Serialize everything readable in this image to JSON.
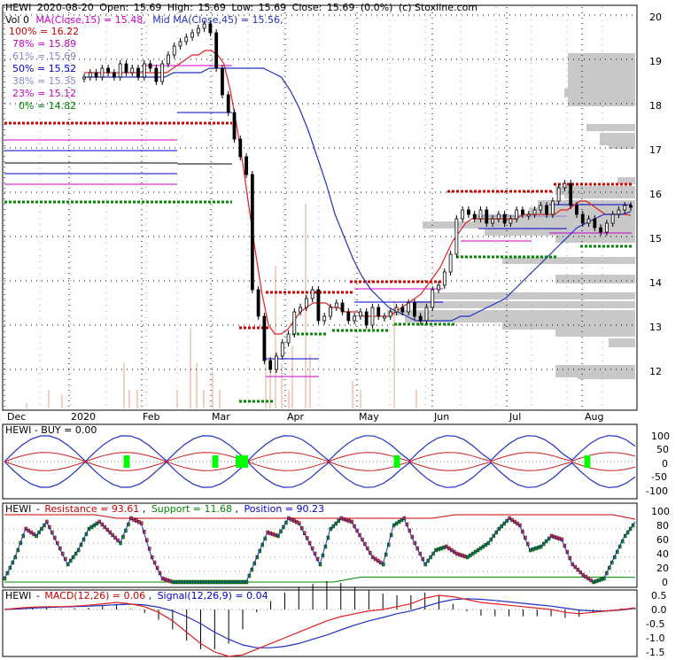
{
  "header": {
    "ticker": "HEWI",
    "date": "2020-08-20",
    "open_label": "Open:",
    "open": "15.69",
    "high_label": "High:",
    "high": "15.69",
    "low_label": "Low:",
    "low": "15.69",
    "close_label": "Close:",
    "close": "15.69",
    "change": "(0.0%)",
    "credit": "(c) Stoxline.com",
    "vol_label": "Vol 0",
    "ma15_label": "MA(Close,15) = 15.48,",
    "ma45_label": "Mid MA(Close,45) = 15.56,"
  },
  "colors": {
    "up": "#000000",
    "ma15": "#e02020",
    "ma45": "#2030c0",
    "resistance_dots": "#cc0000",
    "support_dots": "#008800",
    "volume": "#e8a080",
    "profile": "#c0c0c0",
    "fib_magenta": "#cc00cc",
    "buy_green": "#00ff00"
  },
  "fib_levels": [
    {
      "label": "100% = 16.22",
      "pct": "100%",
      "value": "16.22",
      "color": "#cc0000"
    },
    {
      "label": "78% = 15.89",
      "pct": "78%",
      "value": "15.89",
      "color": "#cc00cc"
    },
    {
      "label": "61% = 15.69",
      "pct": "61%",
      "value": "15.69",
      "color": "#8888cc"
    },
    {
      "label": "50% = 15.52",
      "pct": "50%",
      "value": "15.52",
      "color": "#0000cc"
    },
    {
      "label": "38% = 15.35",
      "pct": "38%",
      "value": "15.35",
      "color": "#8888cc"
    },
    {
      "label": "23% = 15.12",
      "pct": "23%",
      "value": "15.12",
      "color": "#cc00cc"
    },
    {
      "label": "0% = 14.82",
      "pct": "0%",
      "value": "14.82",
      "color": "#008800"
    }
  ],
  "panels": {
    "buy": {
      "label": "HEWI - BUY = 0.00",
      "ticks": [
        "100",
        "50",
        "0",
        "-50",
        "-100"
      ]
    },
    "rsp": {
      "ticker": "HEWI",
      "resistance": "Resistance = 93.61",
      "support": "Support = 11.68",
      "position": "Position = 90.23",
      "ticks": [
        "100",
        "80",
        "60",
        "40",
        "20",
        "0"
      ]
    },
    "macd": {
      "ticker": "HEWI",
      "macd": "MACD(12,26) = 0.06",
      "signal": "Signal(12,26,9) = 0.04",
      "ticks": [
        "0.5",
        "0.0",
        "-0.5",
        "-1.0",
        "-1.5"
      ]
    }
  },
  "chart_data": {
    "type": "line",
    "price_axis": {
      "ylim": [
        11.5,
        20.2
      ],
      "ticks": [
        "20",
        "19",
        "18",
        "17",
        "16",
        "15",
        "14",
        "13",
        "12"
      ]
    },
    "months": [
      "Dec",
      "2020",
      "Feb",
      "Mar",
      "Apr",
      "May",
      "Jun",
      "Jul",
      "Aug"
    ],
    "close": [
      18.6,
      18.7,
      18.6,
      18.8,
      18.7,
      18.6,
      18.9,
      18.7,
      18.8,
      18.6,
      18.9,
      18.8,
      18.5,
      18.9,
      19.1,
      19.3,
      19.4,
      19.5,
      19.6,
      19.7,
      19.8,
      19.6,
      18.8,
      18.2,
      17.8,
      17.2,
      16.8,
      16.4,
      13.8,
      13.2,
      12.2,
      12.0,
      12.3,
      12.6,
      12.8,
      13.3,
      13.4,
      13.6,
      13.8,
      13.1,
      13.2,
      13.4,
      13.5,
      13.3,
      13.1,
      13.2,
      13.3,
      13.0,
      13.4,
      13.2,
      13.2,
      13.3,
      13.4,
      13.3,
      13.5,
      13.2,
      13.1,
      13.4,
      13.8,
      13.9,
      14.2,
      14.6,
      15.4,
      15.6,
      15.5,
      15.4,
      15.6,
      15.3,
      15.4,
      15.5,
      15.3,
      15.4,
      15.6,
      15.5,
      15.5,
      15.6,
      15.7,
      15.5,
      15.8,
      16.1,
      16.2,
      15.7,
      15.5,
      15.3,
      15.4,
      15.2,
      15.1,
      15.3,
      15.5,
      15.6,
      15.7,
      15.69
    ],
    "ma15": [
      18.7,
      18.7,
      18.7,
      18.7,
      18.7,
      18.7,
      18.7,
      18.7,
      18.7,
      18.7,
      18.7,
      18.7,
      18.7,
      18.7,
      18.8,
      18.9,
      19.0,
      19.1,
      19.1,
      19.2,
      19.2,
      19.1,
      18.9,
      18.3,
      17.5,
      16.6,
      15.6,
      14.6,
      13.7,
      13.0,
      12.8,
      12.8,
      12.9,
      13.1,
      13.3,
      13.4,
      13.5,
      13.5,
      13.5,
      13.4,
      13.4,
      13.3,
      13.3,
      13.3,
      13.2,
      13.2,
      13.2,
      13.2,
      13.2,
      13.3,
      13.4,
      13.5,
      13.6,
      13.7,
      13.9,
      14.1,
      14.3,
      14.6,
      14.9,
      15.1,
      15.3,
      15.4,
      15.4,
      15.4,
      15.4,
      15.4,
      15.4,
      15.4,
      15.4,
      15.5,
      15.5,
      15.5,
      15.5,
      15.5,
      15.5,
      15.6,
      15.6,
      15.7,
      15.8,
      15.8,
      15.7,
      15.6,
      15.5,
      15.5,
      15.5,
      15.5,
      15.48
    ],
    "ma45": [
      18.6,
      18.6,
      18.6,
      18.6,
      18.6,
      18.6,
      18.6,
      18.6,
      18.6,
      18.6,
      18.7,
      18.7,
      18.7,
      18.7,
      18.8,
      18.8,
      18.8,
      18.8,
      18.8,
      18.8,
      18.8,
      18.7,
      18.6,
      18.3,
      17.9,
      17.4,
      16.8,
      16.2,
      15.5,
      15.0,
      14.5,
      14.1,
      13.8,
      13.6,
      13.4,
      13.3,
      13.2,
      13.1,
      13.1,
      13.1,
      13.1,
      13.1,
      13.2,
      13.2,
      13.3,
      13.4,
      13.5,
      13.6,
      13.8,
      14.0,
      14.2,
      14.4,
      14.6,
      14.8,
      15.0,
      15.2,
      15.3,
      15.4,
      15.5,
      15.5,
      15.5,
      15.56
    ],
    "macd": [
      0.0,
      0.05,
      0.08,
      0.1,
      0.1,
      0.12,
      0.15,
      0.2,
      0.25,
      0.2,
      0.1,
      -0.1,
      -0.4,
      -0.8,
      -1.2,
      -1.5,
      -1.65,
      -1.6,
      -1.4,
      -1.2,
      -1.0,
      -0.8,
      -0.6,
      -0.4,
      -0.25,
      -0.15,
      -0.05,
      0.0,
      0.1,
      0.2,
      0.4,
      0.5,
      0.45,
      0.35,
      0.25,
      0.2,
      0.15,
      0.1,
      0.05,
      0.0,
      -0.1,
      -0.15,
      -0.1,
      -0.05,
      0.0,
      0.06
    ],
    "signal": [
      0.0,
      0.02,
      0.05,
      0.07,
      0.09,
      0.1,
      0.12,
      0.14,
      0.17,
      0.19,
      0.16,
      0.08,
      -0.05,
      -0.25,
      -0.5,
      -0.8,
      -1.05,
      -1.25,
      -1.35,
      -1.35,
      -1.3,
      -1.2,
      -1.05,
      -0.9,
      -0.72,
      -0.55,
      -0.4,
      -0.28,
      -0.15,
      -0.05,
      0.1,
      0.25,
      0.35,
      0.38,
      0.36,
      0.32,
      0.27,
      0.22,
      0.17,
      0.12,
      0.05,
      -0.02,
      -0.05,
      -0.05,
      -0.02,
      0.04
    ],
    "position": [
      10,
      40,
      80,
      70,
      90,
      60,
      30,
      50,
      80,
      90,
      75,
      60,
      95,
      88,
      40,
      10,
      5,
      5,
      5,
      5,
      5,
      5,
      5,
      5,
      40,
      75,
      70,
      95,
      88,
      60,
      30,
      80,
      95,
      90,
      65,
      40,
      30,
      85,
      95,
      60,
      30,
      50,
      55,
      45,
      40,
      50,
      60,
      80,
      95,
      85,
      50,
      55,
      70,
      65,
      30,
      15,
      5,
      10,
      40,
      70,
      90
    ],
    "resistance_pos": [
      100,
      100,
      100,
      100,
      100,
      95,
      95,
      95,
      95,
      95,
      95,
      95,
      95,
      95,
      95,
      95,
      95,
      95,
      95,
      95,
      100,
      100,
      100,
      100,
      100,
      100,
      100,
      100,
      93.61
    ],
    "support_pos": [
      5,
      5,
      5,
      5,
      5,
      5,
      5,
      5,
      5,
      5,
      5,
      5,
      5,
      12,
      12,
      12,
      12,
      12,
      12,
      12,
      12,
      12,
      12,
      11.68
    ]
  }
}
